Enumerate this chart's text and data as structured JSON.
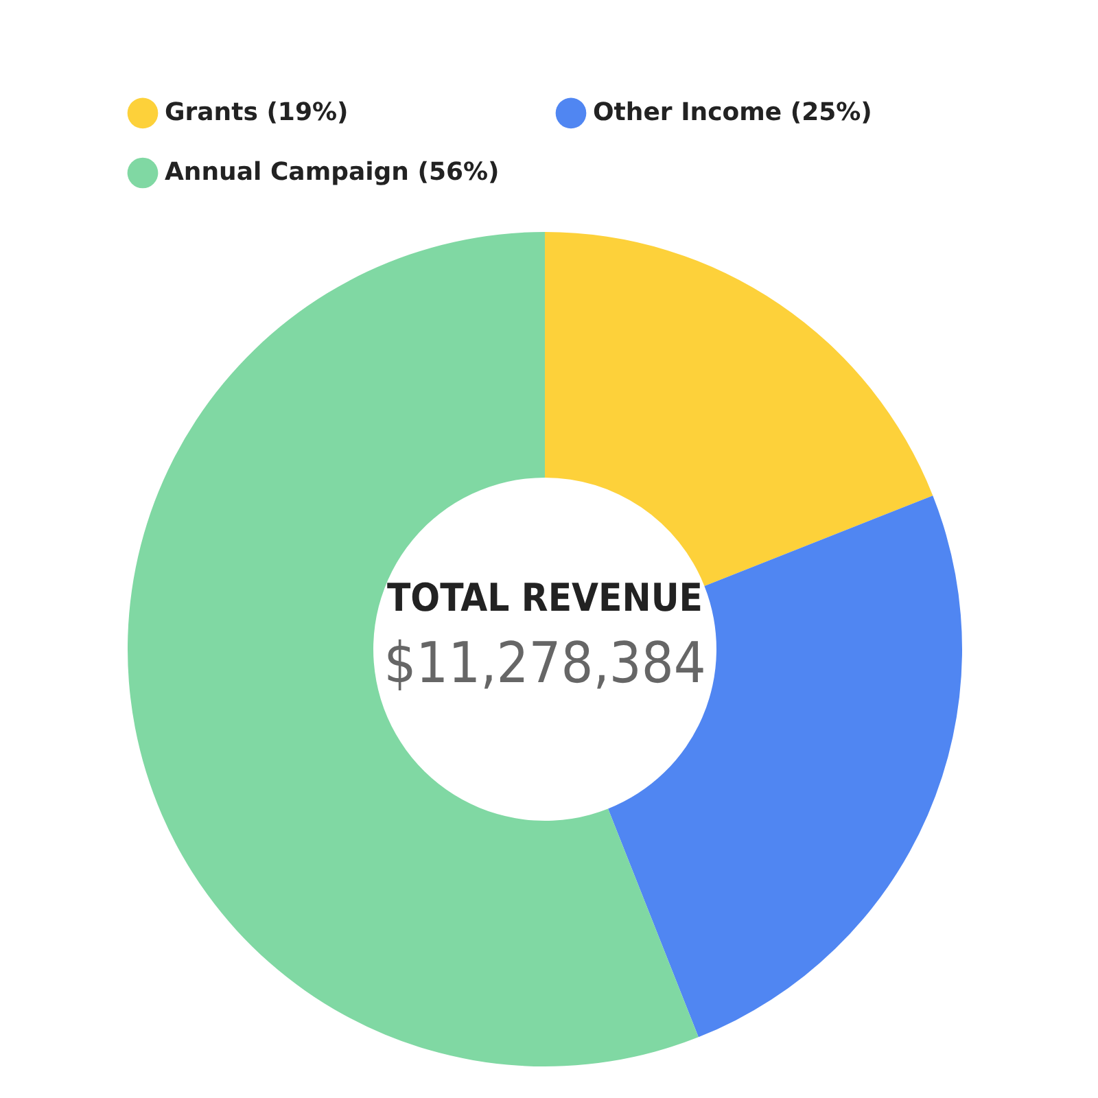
{
  "chart_data": {
    "type": "donut",
    "categories": [
      "Grants (19%)",
      "Other Income (25%)",
      "Annual Campaign (56%)"
    ],
    "values": [
      19,
      25,
      56
    ],
    "colors": [
      "#fdd13a",
      "#5086f2",
      "#80d8a3"
    ],
    "legend": "top",
    "annotations": [
      "TOTAL REVENUE",
      "$11,278,384"
    ]
  }
}
